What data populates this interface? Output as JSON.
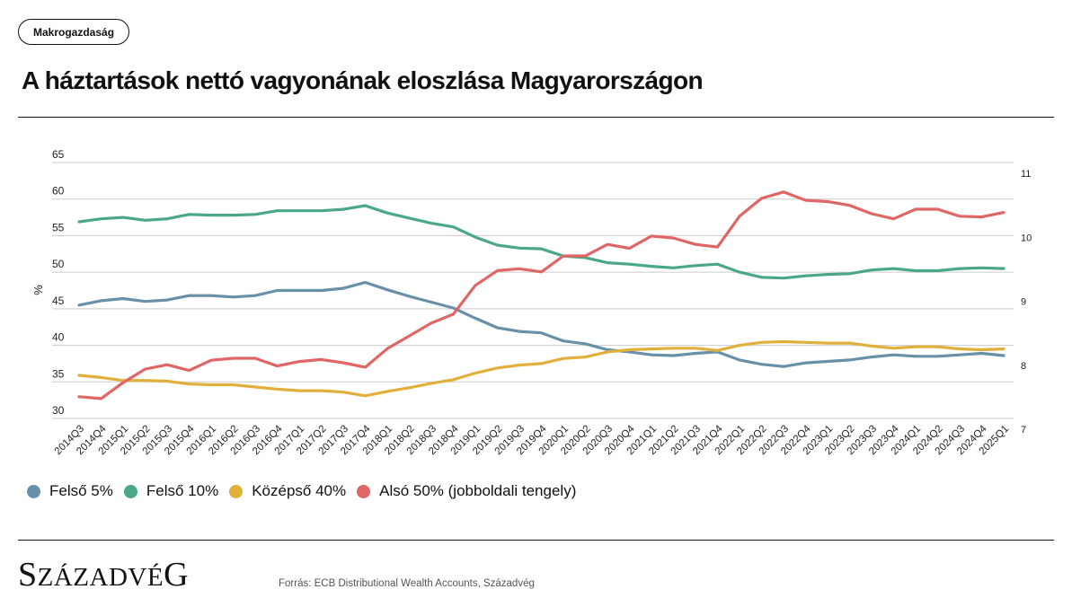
{
  "header": {
    "category_tag": "Makrogazdaság",
    "title": "A háztartások nettó vagyonának eloszlása Magyarországon"
  },
  "footer": {
    "logo_first": "S",
    "logo_rest": "ZÁZADVÉ",
    "logo_last": "G",
    "source": "Forrás: ECB Distributional Wealth Accounts, Századvég"
  },
  "legend": [
    {
      "label": "Felső 5%",
      "color": "#6890a8"
    },
    {
      "label": "Felső 10%",
      "color": "#4aa886"
    },
    {
      "label": "Középső 40%",
      "color": "#e0b03a"
    },
    {
      "label": "Alsó 50% (jobboldali tengely)",
      "color": "#e06666"
    }
  ],
  "chart_data": {
    "type": "line",
    "title": "A háztartások nettó vagyonának eloszlása Magyarországon",
    "ylabel": "%",
    "ylabel_right": "",
    "ylim": [
      30,
      65
    ],
    "yticks": [
      30,
      35,
      40,
      45,
      50,
      55,
      60,
      65
    ],
    "ylim_right": [
      7,
      11
    ],
    "yticks_right": [
      7,
      8,
      9,
      10,
      11
    ],
    "grid": true,
    "legend_position": "bottom-left",
    "x": [
      "2014Q3",
      "2014Q4",
      "2015Q1",
      "2015Q2",
      "2015Q3",
      "2015Q4",
      "2016Q1",
      "2016Q2",
      "2016Q3",
      "2016Q4",
      "2017Q1",
      "2017Q2",
      "2017Q3",
      "2017Q4",
      "2018Q1",
      "2018Q2",
      "2018Q3",
      "2018Q4",
      "2019Q1",
      "2019Q2",
      "2019Q3",
      "2019Q4",
      "2020Q1",
      "2020Q2",
      "2020Q3",
      "2020Q4",
      "2021Q1",
      "2021Q2",
      "2021Q3",
      "2021Q4",
      "2022Q1",
      "2022Q2",
      "2022Q3",
      "2022Q4",
      "2023Q1",
      "2023Q2",
      "2023Q3",
      "2023Q4",
      "2024Q1",
      "2024Q2",
      "2024Q3",
      "2024Q4",
      "2025Q1"
    ],
    "series": [
      {
        "name": "Felső 5%",
        "axis": "left",
        "color": "#6890a8",
        "values": [
          45.5,
          46.1,
          46.4,
          46.0,
          46.2,
          46.8,
          46.8,
          46.6,
          46.8,
          47.5,
          47.5,
          47.5,
          47.8,
          48.6,
          47.6,
          46.7,
          45.9,
          45.1,
          43.7,
          42.4,
          41.9,
          41.7,
          40.6,
          40.2,
          39.4,
          39.1,
          38.7,
          38.6,
          38.9,
          39.1,
          38.0,
          37.4,
          37.1,
          37.6,
          37.8,
          38.0,
          38.4,
          38.7,
          38.5,
          38.5,
          38.7,
          38.9,
          38.6
        ]
      },
      {
        "name": "Felső 10%",
        "axis": "left",
        "color": "#4aa886",
        "values": [
          56.9,
          57.3,
          57.5,
          57.1,
          57.3,
          57.9,
          57.8,
          57.8,
          57.9,
          58.4,
          58.4,
          58.4,
          58.6,
          59.1,
          58.1,
          57.4,
          56.7,
          56.2,
          54.8,
          53.7,
          53.3,
          53.2,
          52.2,
          52.0,
          51.3,
          51.1,
          50.8,
          50.6,
          50.9,
          51.1,
          50.0,
          49.3,
          49.2,
          49.5,
          49.7,
          49.8,
          50.3,
          50.5,
          50.2,
          50.2,
          50.5,
          50.6,
          50.5
        ]
      },
      {
        "name": "Középső 40%",
        "axis": "left",
        "color": "#e0b03a",
        "values": [
          35.9,
          35.6,
          35.2,
          35.2,
          35.1,
          34.7,
          34.6,
          34.6,
          34.3,
          34.0,
          33.8,
          33.8,
          33.6,
          33.1,
          33.7,
          34.2,
          34.8,
          35.3,
          36.2,
          36.9,
          37.3,
          37.5,
          38.2,
          38.4,
          39.1,
          39.4,
          39.5,
          39.6,
          39.6,
          39.3,
          40.0,
          40.4,
          40.5,
          40.4,
          40.3,
          40.3,
          39.9,
          39.6,
          39.8,
          39.8,
          39.5,
          39.4,
          39.5
        ]
      },
      {
        "name": "Alsó 50% (jobboldali tengely)",
        "axis": "right",
        "color": "#e06666",
        "values": [
          7.34,
          7.31,
          7.56,
          7.77,
          7.84,
          7.75,
          7.91,
          7.94,
          7.94,
          7.82,
          7.89,
          7.92,
          7.87,
          7.8,
          8.09,
          8.29,
          8.49,
          8.63,
          9.08,
          9.31,
          9.34,
          9.29,
          9.54,
          9.54,
          9.72,
          9.66,
          9.85,
          9.82,
          9.72,
          9.68,
          10.16,
          10.44,
          10.54,
          10.41,
          10.39,
          10.33,
          10.2,
          10.12,
          10.27,
          10.27,
          10.16,
          10.15,
          10.22
        ]
      }
    ]
  }
}
